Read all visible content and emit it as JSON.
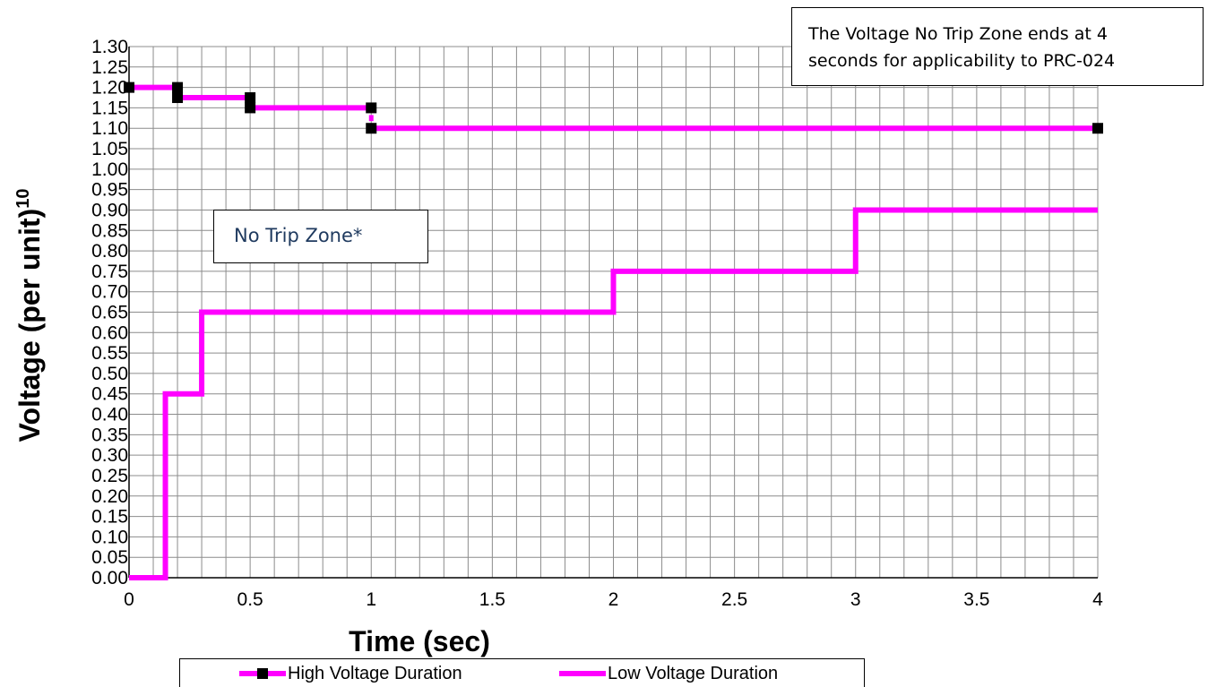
{
  "chart_data": {
    "type": "line",
    "title": "",
    "xlabel": "Time (sec)",
    "ylabel": "Voltage (per unit)",
    "ylabel_superscript": "10",
    "xlim": [
      0,
      4
    ],
    "ylim": [
      0,
      1.3
    ],
    "x_minor_step": 0.1,
    "y_minor_step": 0.05,
    "grid": true,
    "x_ticks": [
      "0",
      "0.5",
      "1",
      "1.5",
      "2",
      "2.5",
      "3",
      "3.5",
      "4"
    ],
    "y_ticks": [
      "0.00",
      "0.05",
      "0.10",
      "0.15",
      "0.20",
      "0.25",
      "0.30",
      "0.35",
      "0.40",
      "0.45",
      "0.50",
      "0.55",
      "0.60",
      "0.65",
      "0.70",
      "0.75",
      "0.80",
      "0.85",
      "0.90",
      "0.95",
      "1.00",
      "1.05",
      "1.10",
      "1.15",
      "1.20",
      "1.25",
      "1.30"
    ],
    "legend_position": "bottom",
    "series": [
      {
        "name": "High Voltage Duration",
        "color": "#ff00ff",
        "marker": "square",
        "marker_color": "#000000",
        "segments": [
          [
            [
              0,
              1.2
            ],
            [
              0.2,
              1.2
            ]
          ],
          [
            [
              0.2,
              1.175
            ],
            [
              0.5,
              1.175
            ]
          ],
          [
            [
              0.5,
              1.15
            ],
            [
              1.0,
              1.15
            ]
          ],
          [
            [
              1.0,
              1.1
            ],
            [
              4.0,
              1.1
            ]
          ]
        ],
        "markers": [
          [
            0,
            1.2
          ],
          [
            0.2,
            1.2
          ],
          [
            0.2,
            1.175
          ],
          [
            0.5,
            1.175
          ],
          [
            0.5,
            1.15
          ],
          [
            1.0,
            1.15
          ],
          [
            1.0,
            1.1
          ],
          [
            4.0,
            1.1
          ]
        ]
      },
      {
        "name": "Low Voltage Duration",
        "color": "#ff00ff",
        "marker": "none",
        "points": [
          [
            0,
            0
          ],
          [
            0.15,
            0
          ],
          [
            0.15,
            0.45
          ],
          [
            0.3,
            0.45
          ],
          [
            0.3,
            0.65
          ],
          [
            2.0,
            0.65
          ],
          [
            2.0,
            0.75
          ],
          [
            3.0,
            0.75
          ],
          [
            3.0,
            0.9
          ],
          [
            4.0,
            0.9
          ]
        ]
      }
    ],
    "annotations": [
      "The Voltage No Trip Zone ends at 4 seconds for applicability to PRC-024",
      "No Trip Zone*"
    ]
  },
  "notes": {
    "top_line1": "The Voltage No Trip Zone ends at 4",
    "top_line2": "seconds for applicability to PRC-024",
    "zone_label": "No Trip Zone*"
  },
  "legend": {
    "high_label": "High Voltage Duration",
    "low_label": "Low Voltage Duration"
  }
}
